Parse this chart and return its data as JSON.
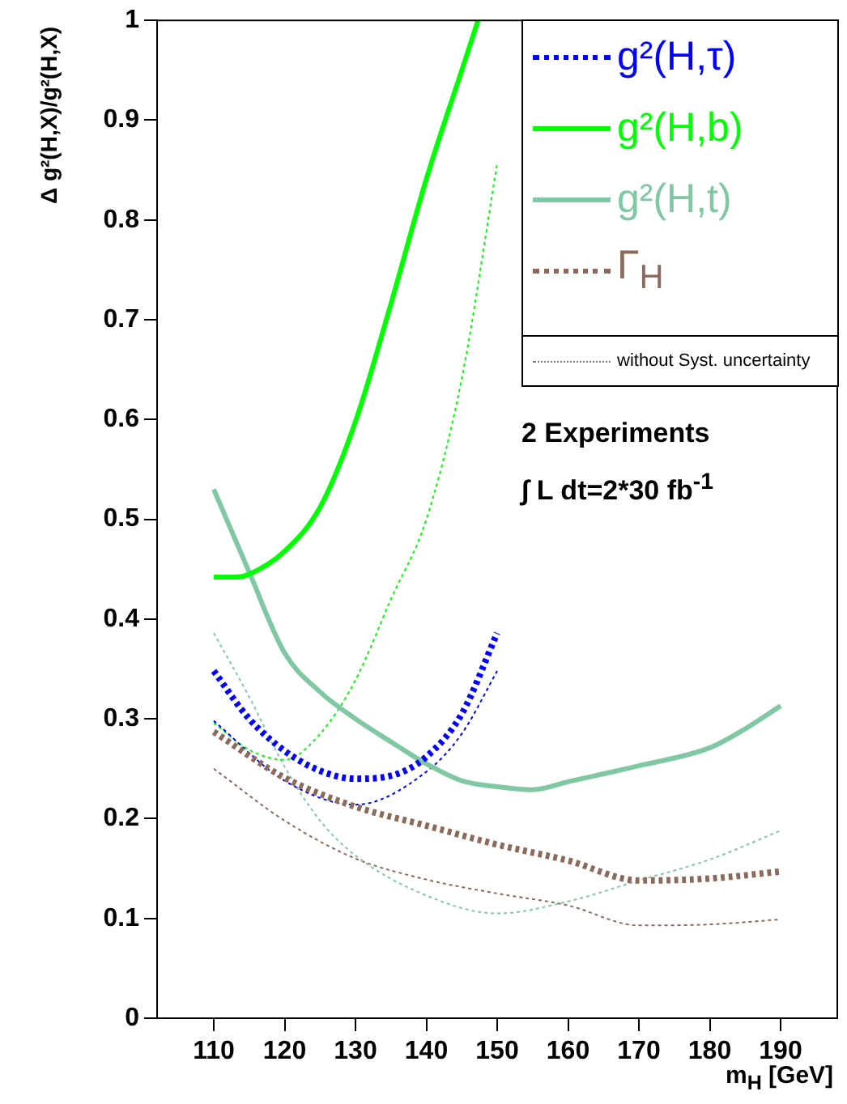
{
  "chart_data": {
    "type": "line",
    "xlabel": "m$_{H}$ [GeV]",
    "ylabel": "Δ g²(H,X)/g²(H,X)",
    "xlim": [
      102,
      198
    ],
    "xticks": [
      110,
      120,
      130,
      140,
      150,
      160,
      170,
      180,
      190
    ],
    "ylim": [
      0,
      1
    ],
    "yticks": [
      0,
      0.1,
      0.2,
      0.3,
      0.4,
      0.5,
      0.6,
      0.7,
      0.8,
      0.9,
      1
    ],
    "grid": false,
    "legend": "top right",
    "marker": "none",
    "series": [
      {
        "name": "g²(H,τ)",
        "color": "#0000ff",
        "line_style": "dotted",
        "x": [
          110,
          115,
          120,
          125,
          130,
          135,
          140,
          145,
          150
        ],
        "values": [
          0.348,
          0.3,
          0.268,
          0.248,
          0.24,
          0.243,
          0.262,
          0.305,
          0.386
        ]
      },
      {
        "name": "g²(H,b)",
        "color": "#00ff00",
        "line_style": "solid",
        "x": [
          110,
          113,
          115,
          120,
          125,
          130,
          135,
          140,
          145,
          147.3
        ],
        "values": [
          0.442,
          0.442,
          0.445,
          0.468,
          0.512,
          0.598,
          0.716,
          0.841,
          0.95,
          1.0
        ]
      },
      {
        "name": "g²(H,t)",
        "color": "#80c8a4",
        "line_style": "solid",
        "x": [
          110,
          115,
          120,
          125,
          130,
          135,
          140,
          145,
          150,
          155,
          160,
          170,
          180,
          185,
          190
        ],
        "values": [
          0.53,
          0.447,
          0.366,
          0.327,
          0.3,
          0.277,
          0.255,
          0.238,
          0.232,
          0.229,
          0.237,
          0.253,
          0.271,
          0.29,
          0.313
        ]
      },
      {
        "name": "Γ$_{H}$",
        "color": "#8b6a5c",
        "line_style": "dotted",
        "x": [
          110,
          120,
          130,
          140,
          150,
          160,
          170,
          180,
          190
        ],
        "values": [
          0.287,
          0.241,
          0.212,
          0.193,
          0.174,
          0.158,
          0.138,
          0.14,
          0.147
        ]
      },
      {
        "color": "#0000ff",
        "line_style": "dotted",
        "x": [
          110,
          120,
          130,
          140,
          145,
          150
        ],
        "values": [
          0.298,
          0.238,
          0.214,
          0.247,
          0.285,
          0.348
        ]
      },
      {
        "color": "#00ff00",
        "line_style": "dotted",
        "x": [
          110,
          115,
          120,
          125,
          130,
          135,
          140,
          145,
          150
        ],
        "values": [
          0.296,
          0.269,
          0.259,
          0.285,
          0.339,
          0.42,
          0.5,
          0.641,
          0.857
        ]
      },
      {
        "color": "#80c8a4",
        "line_style": "dotted",
        "x": [
          110,
          115,
          120,
          125,
          130,
          140,
          150,
          160,
          170,
          180,
          190
        ],
        "values": [
          0.386,
          0.322,
          0.252,
          0.198,
          0.163,
          0.123,
          0.105,
          0.117,
          0.138,
          0.159,
          0.188
        ]
      },
      {
        "color": "#8b6a5c",
        "line_style": "dotted",
        "x": [
          110,
          120,
          130,
          140,
          150,
          160,
          170,
          180,
          190
        ],
        "values": [
          0.25,
          0.198,
          0.16,
          0.139,
          0.125,
          0.113,
          0.093,
          0.094,
          0.099
        ]
      }
    ],
    "annotations": [
      "without Syst. uncertainty",
      "2 Experiments",
      "∫ L dt=2*30 fb$^{-1}$"
    ]
  }
}
